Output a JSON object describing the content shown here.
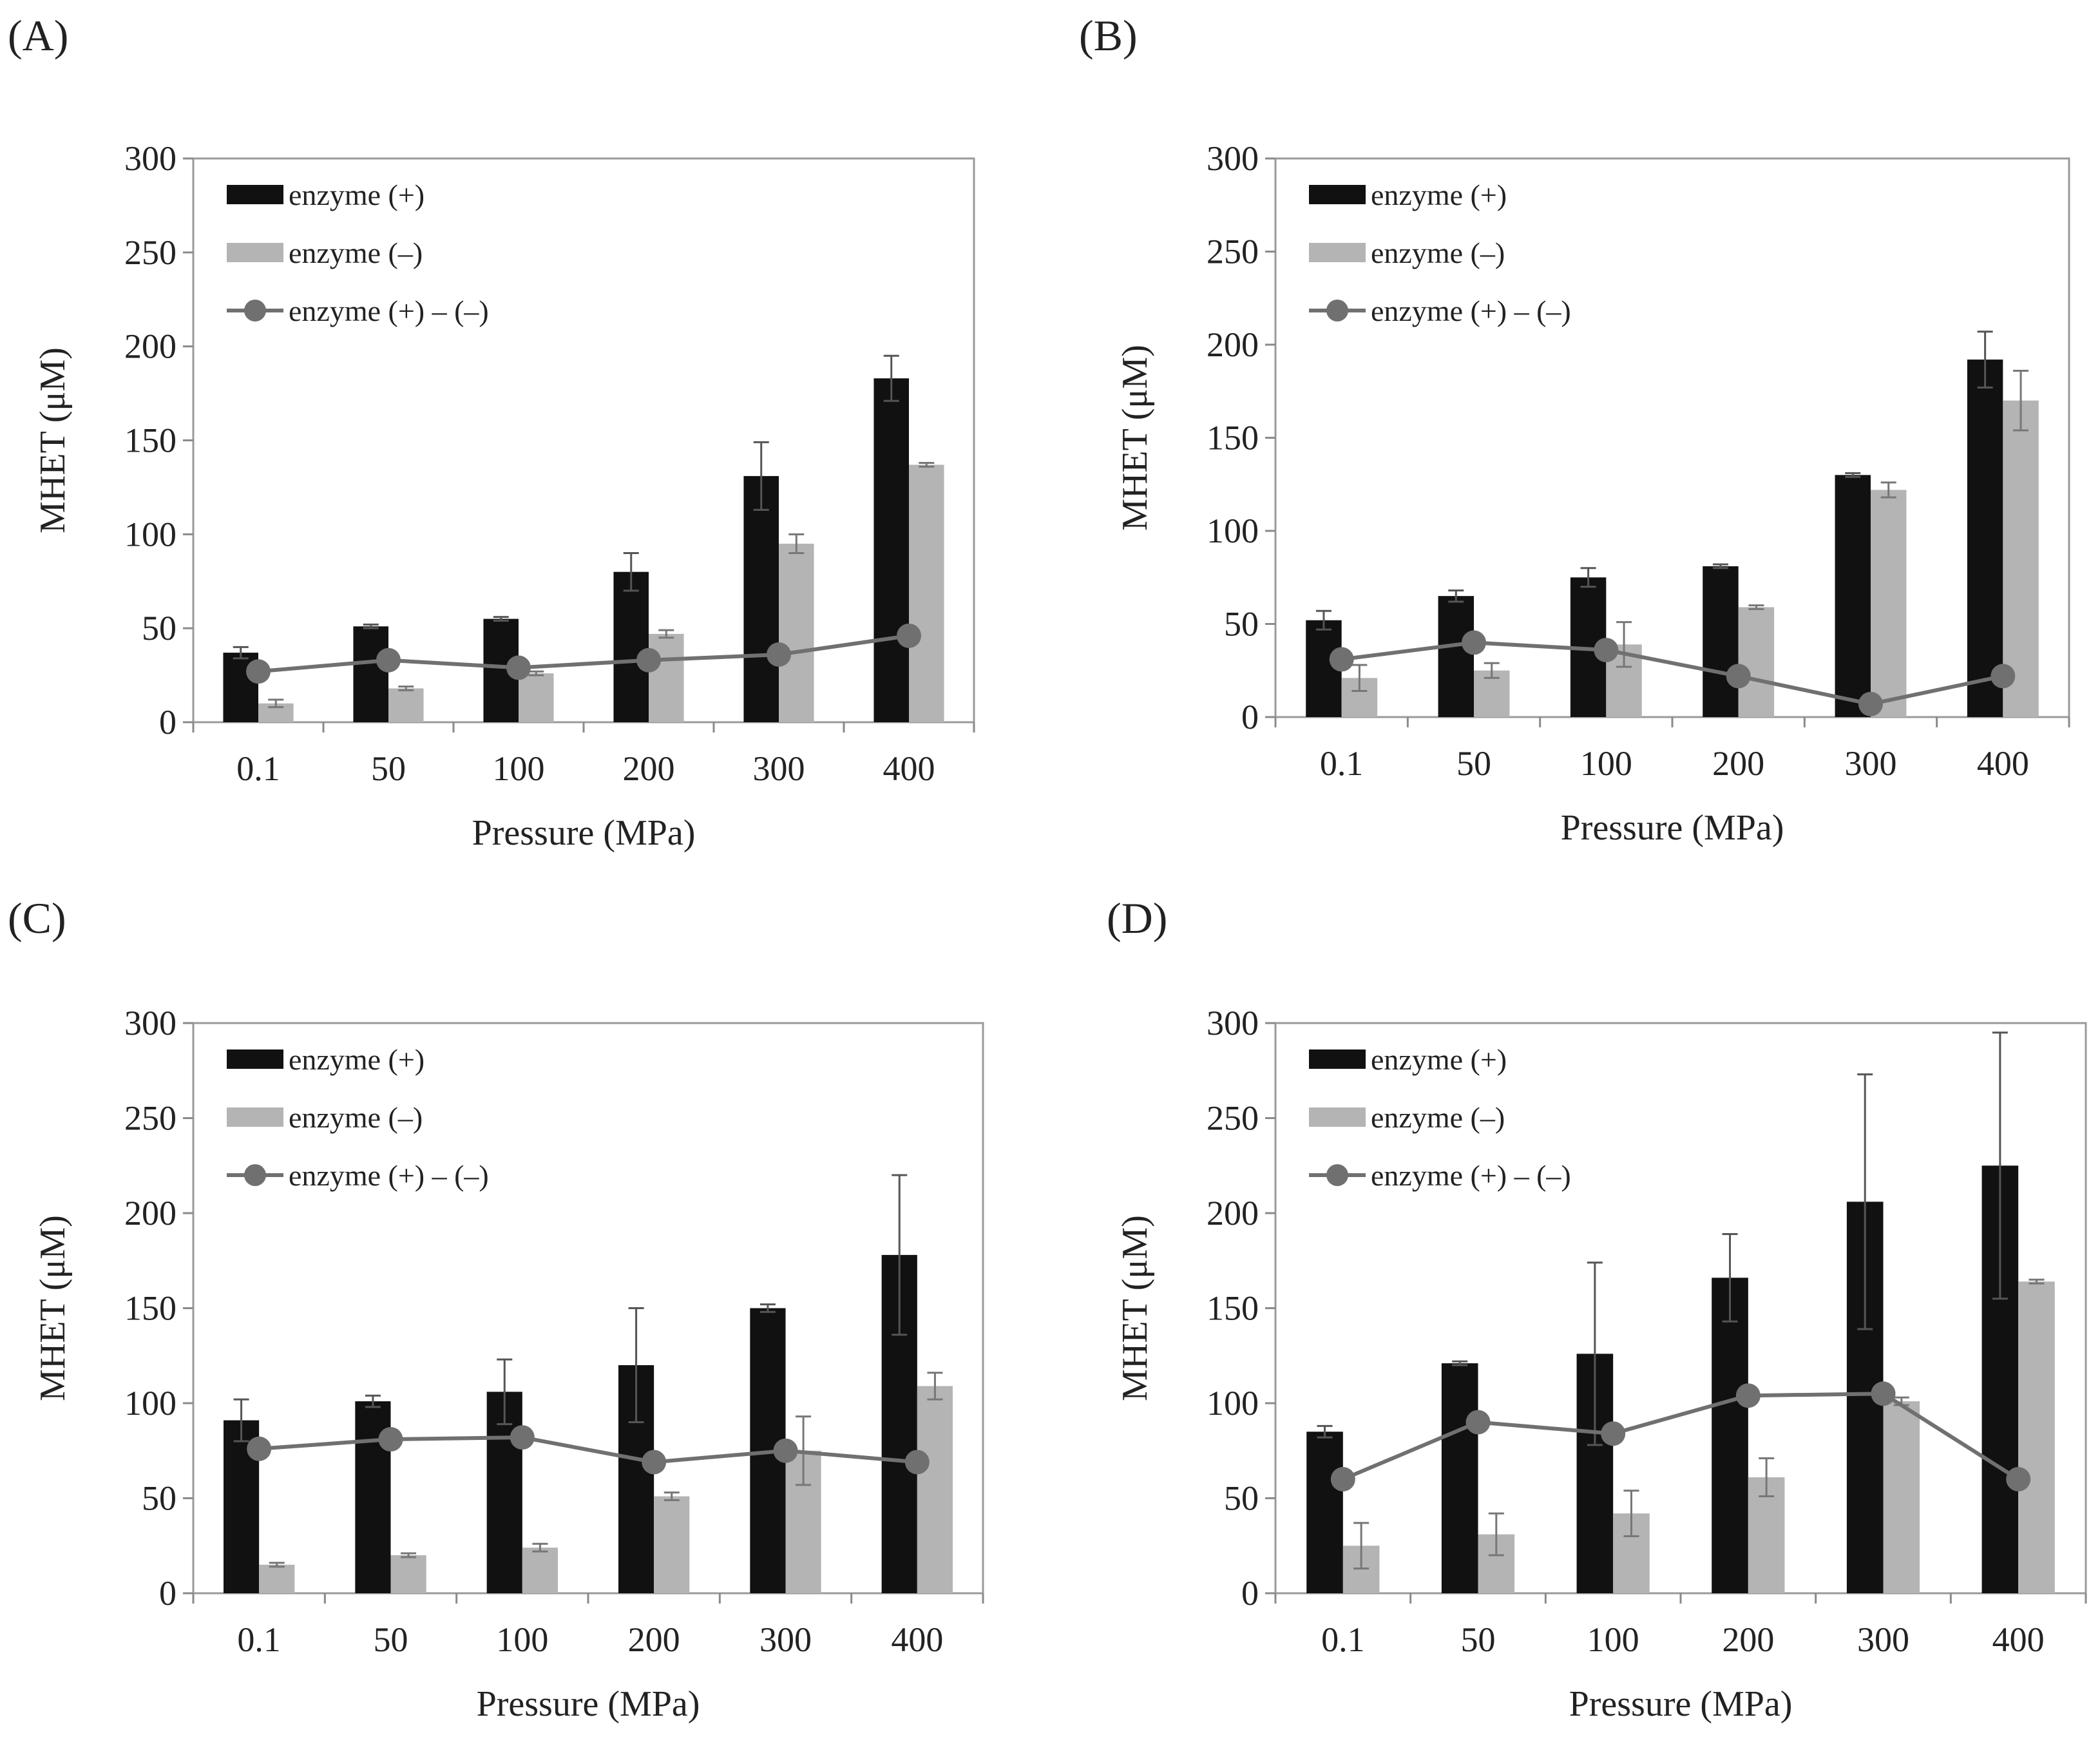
{
  "chart_data": [
    {
      "type": "bar",
      "panel": "(A)",
      "categories": [
        "0.1",
        "50",
        "100",
        "200",
        "300",
        "400"
      ],
      "xlabel": "Pressure (MPa)",
      "ylabel": "MHET (μM)",
      "ylim": [
        0,
        300
      ],
      "yticks": [
        "0",
        "50",
        "100",
        "150",
        "200",
        "250",
        "300"
      ],
      "legend": [
        "enzyme (+)",
        "enzyme (–)",
        "enzyme (+) – (–)"
      ],
      "legend_position": "top-left",
      "series": [
        {
          "name": "enzyme (+)",
          "type": "bar",
          "color": "#111111",
          "values": [
            37,
            51,
            55,
            80,
            131,
            183
          ],
          "errors": [
            3,
            1,
            1,
            10,
            18,
            12
          ]
        },
        {
          "name": "enzyme (–)",
          "type": "bar",
          "color": "#b4b4b4",
          "values": [
            10,
            18,
            26,
            47,
            95,
            137
          ],
          "errors": [
            2,
            1,
            1,
            2,
            5,
            1
          ]
        },
        {
          "name": "enzyme (+) – (–)",
          "type": "line",
          "color": "#707070",
          "values": [
            27,
            33,
            29,
            33,
            36,
            46
          ]
        }
      ]
    },
    {
      "type": "bar",
      "panel": "(B)",
      "categories": [
        "0.1",
        "50",
        "100",
        "200",
        "300",
        "400"
      ],
      "xlabel": "Pressure (MPa)",
      "ylabel": "MHET (μM)",
      "ylim": [
        0,
        300
      ],
      "yticks": [
        "0",
        "50",
        "100",
        "150",
        "200",
        "250",
        "300"
      ],
      "legend": [
        "enzyme (+)",
        "enzyme (–)",
        "enzyme (+) – (–)"
      ],
      "legend_position": "top-left",
      "series": [
        {
          "name": "enzyme (+)",
          "type": "bar",
          "color": "#111111",
          "values": [
            52,
            65,
            75,
            81,
            130,
            192
          ],
          "errors": [
            5,
            3,
            5,
            1,
            1,
            15
          ]
        },
        {
          "name": "enzyme (–)",
          "type": "bar",
          "color": "#b4b4b4",
          "values": [
            21,
            25,
            39,
            59,
            122,
            170
          ],
          "errors": [
            7,
            4,
            12,
            1,
            4,
            16
          ]
        },
        {
          "name": "enzyme (+) – (–)",
          "type": "line",
          "color": "#707070",
          "values": [
            31,
            40,
            36,
            22,
            7,
            22
          ]
        }
      ]
    },
    {
      "type": "bar",
      "panel": "(C)",
      "categories": [
        "0.1",
        "50",
        "100",
        "200",
        "300",
        "400"
      ],
      "xlabel": "Pressure (MPa)",
      "ylabel": "MHET (μM)",
      "ylim": [
        0,
        300
      ],
      "yticks": [
        "0",
        "50",
        "100",
        "150",
        "200",
        "250",
        "300"
      ],
      "legend": [
        "enzyme (+)",
        "enzyme (–)",
        "enzyme (+) – (–)"
      ],
      "legend_position": "top-left",
      "series": [
        {
          "name": "enzyme (+)",
          "type": "bar",
          "color": "#111111",
          "values": [
            91,
            101,
            106,
            120,
            150,
            178
          ],
          "errors": [
            11,
            3,
            17,
            30,
            2,
            42
          ]
        },
        {
          "name": "enzyme (–)",
          "type": "bar",
          "color": "#b4b4b4",
          "values": [
            15,
            20,
            24,
            51,
            75,
            109
          ],
          "errors": [
            1,
            1,
            2,
            2,
            18,
            7
          ]
        },
        {
          "name": "enzyme (+) – (–)",
          "type": "line",
          "color": "#707070",
          "values": [
            76,
            81,
            82,
            69,
            75,
            69
          ]
        }
      ]
    },
    {
      "type": "bar",
      "panel": "(D)",
      "categories": [
        "0.1",
        "50",
        "100",
        "200",
        "300",
        "400"
      ],
      "xlabel": "Pressure (MPa)",
      "ylabel": "MHET (μM)",
      "ylim": [
        0,
        300
      ],
      "yticks": [
        "0",
        "50",
        "100",
        "150",
        "200",
        "250",
        "300"
      ],
      "legend": [
        "enzyme (+)",
        "enzyme (–)",
        "enzyme (+) – (–)"
      ],
      "legend_position": "top-left",
      "series": [
        {
          "name": "enzyme (+)",
          "type": "bar",
          "color": "#111111",
          "values": [
            85,
            121,
            126,
            166,
            206,
            225
          ],
          "errors": [
            3,
            1,
            48,
            23,
            67,
            70
          ]
        },
        {
          "name": "enzyme (–)",
          "type": "bar",
          "color": "#b4b4b4",
          "values": [
            25,
            31,
            42,
            61,
            101,
            164
          ],
          "errors": [
            12,
            11,
            12,
            10,
            2,
            1
          ]
        },
        {
          "name": "enzyme (+) – (–)",
          "type": "line",
          "color": "#707070",
          "values": [
            60,
            90,
            84,
            104,
            105,
            60
          ]
        }
      ]
    }
  ]
}
